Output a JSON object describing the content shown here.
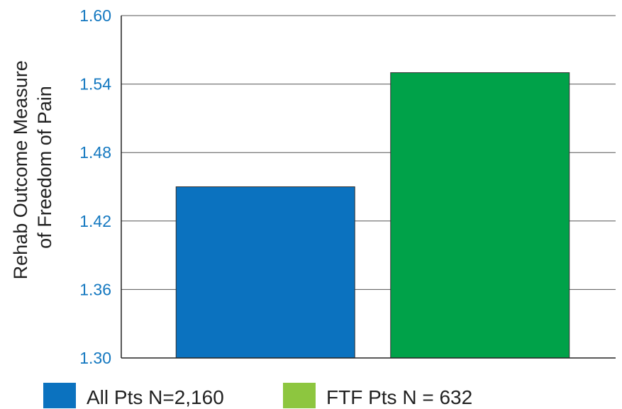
{
  "chart_data": {
    "type": "bar",
    "title": "",
    "xlabel": "",
    "ylabel_lines": [
      "Rehab Outcome Measure",
      "of Freedom of Pain"
    ],
    "ylim": [
      1.3,
      1.6
    ],
    "yticks": [
      "1.30",
      "1.36",
      "1.42",
      "1.48",
      "1.54",
      "1.60"
    ],
    "grid": true,
    "legend_position": "bottom",
    "categories": [
      "All Pts N=2,160",
      "FTF Pts N = 632"
    ],
    "values": [
      1.45,
      1.55
    ],
    "bar_colors": [
      "#0b72bf",
      "#00a249"
    ],
    "legend": [
      {
        "label": "All Pts N=2,160",
        "color": "#0b72bf"
      },
      {
        "label": "FTF Pts N = 632",
        "color": "#8dc63f"
      }
    ],
    "tick_color": "#1478c0",
    "axis_color": "#222222"
  }
}
